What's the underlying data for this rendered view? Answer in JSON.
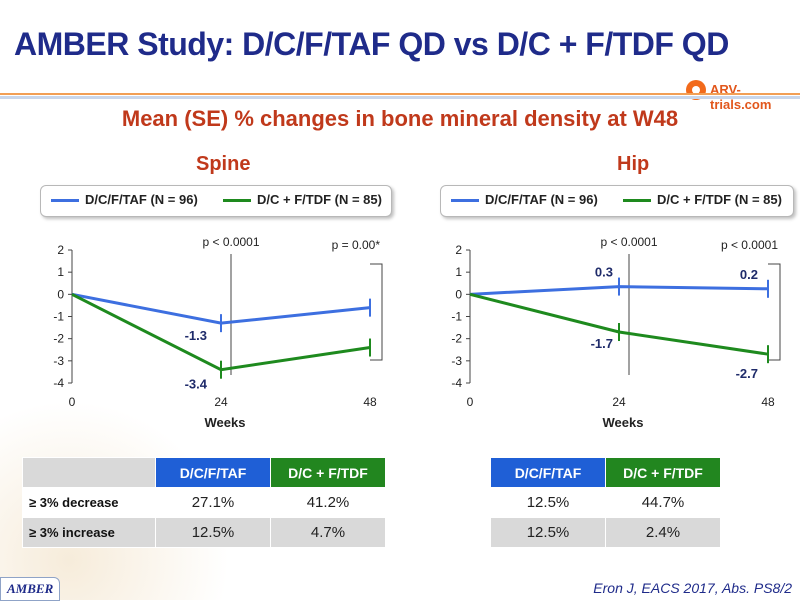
{
  "title": "AMBER Study: D/C/F/TAF QD vs D/C + F/TDF QD",
  "logo_text": "ARV-trials.com",
  "subtitle": "Mean (SE) % changes in bone mineral density at W48",
  "colors": {
    "series1": "#3d6fe0",
    "series2": "#1e8a1e",
    "title": "#1f2b8a",
    "accent": "#c0391b"
  },
  "chart_data": [
    {
      "type": "line",
      "title": "Spine",
      "xlabel": "Weeks",
      "ylabel": "",
      "x": [
        0,
        24,
        48
      ],
      "xticks": [
        "0",
        "24",
        "48"
      ],
      "yticks": [
        "2",
        "1",
        "0",
        "-1",
        "-2",
        "-3",
        "-4"
      ],
      "ylim": [
        -4,
        2
      ],
      "legend": "top",
      "series": [
        {
          "name": "D/C/F/TAF (N = 96)",
          "values": [
            0,
            -1.3,
            -0.6
          ],
          "labels": [
            "",
            "-1.3",
            ""
          ]
        },
        {
          "name": "D/C + F/TDF (N = 85)",
          "values": [
            0,
            -3.4,
            -2.4
          ],
          "labels": [
            "",
            "-3.4",
            ""
          ]
        }
      ],
      "pvalues": [
        {
          "x": 24,
          "text": "p < 0.0001"
        },
        {
          "x": 48,
          "text": "p = 0.00*"
        }
      ]
    },
    {
      "type": "line",
      "title": "Hip",
      "xlabel": "Weeks",
      "ylabel": "",
      "x": [
        0,
        24,
        48
      ],
      "xticks": [
        "0",
        "24",
        "48"
      ],
      "yticks": [
        "2",
        "1",
        "0",
        "-1",
        "-2",
        "-3",
        "-4"
      ],
      "ylim": [
        -4,
        2
      ],
      "legend": "top",
      "series": [
        {
          "name": "D/C/F/TAF (N = 96)",
          "values": [
            0,
            0.35,
            0.25
          ],
          "labels": [
            "",
            "0.3",
            "0.2"
          ]
        },
        {
          "name": "D/C + F/TDF (N = 85)",
          "values": [
            0,
            -1.7,
            -2.7
          ],
          "labels": [
            "",
            "-1.7",
            "-2.7"
          ]
        }
      ],
      "pvalues": [
        {
          "x": 24,
          "text": "p < 0.0001"
        },
        {
          "x": 48,
          "text": "p < 0.0001"
        }
      ]
    }
  ],
  "tables": {
    "spine": {
      "headers": [
        "D/C/F/TAF",
        "D/C + F/TDF"
      ],
      "rows": [
        {
          "label": "≥ 3% decrease",
          "values": [
            "27.1%",
            "41.2%"
          ]
        },
        {
          "label": "≥ 3% increase",
          "values": [
            "12.5%",
            "4.7%"
          ]
        }
      ]
    },
    "hip": {
      "headers": [
        "D/C/F/TAF",
        "D/C + F/TDF"
      ],
      "rows": [
        {
          "values": [
            "12.5%",
            "44.7%"
          ]
        },
        {
          "values": [
            "12.5%",
            "2.4%"
          ]
        }
      ]
    }
  },
  "footer": {
    "tag": "AMBER",
    "citation": "Eron J, EACS 2017, Abs. PS8/2"
  }
}
